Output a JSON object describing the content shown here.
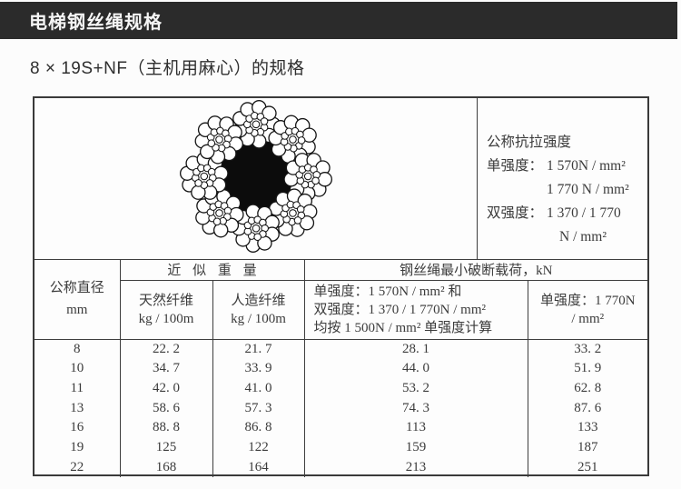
{
  "title_bar": {
    "title": "电梯钢丝绳规格"
  },
  "subtitle": "8 × 19S+NF（主机用麻心）的规格",
  "strength_note": {
    "heading": "公称抗拉强度",
    "rows": [
      {
        "label": "单强度：",
        "value": "1 570N / mm²"
      },
      {
        "label": "",
        "value": "1 770 N / mm²"
      },
      {
        "label": "双强度：",
        "value": "1 370 / 1 770"
      },
      {
        "label": "",
        "value": "N / mm²"
      }
    ]
  },
  "table": {
    "headers": {
      "diameter_line1": "公称直径",
      "diameter_line2": "mm",
      "weight_group": "近似重量",
      "natural_line1": "天然纤维",
      "natural_line2": "kg / 100m",
      "artificial_line1": "人造纤维",
      "artificial_line2": "kg / 100m",
      "breaking_group": "钢丝绳最小破断载荷，kN",
      "breaking_dual_lines": [
        "单强度：1 570N / mm² 和",
        "双强度：1 370 / 1 770N / mm²",
        "均按 1 500N / mm² 单强度计算"
      ],
      "breaking_single_line1": "单强度：1 770N",
      "breaking_single_line2": "/ mm²"
    },
    "rows": [
      {
        "diameter": "8",
        "natural": "22. 2",
        "artificial": "21. 7",
        "breaking_dual": "28. 1",
        "breaking_single": "33. 2"
      },
      {
        "diameter": "10",
        "natural": "34. 7",
        "artificial": "33. 9",
        "breaking_dual": "44. 0",
        "breaking_single": "51. 9"
      },
      {
        "diameter": "11",
        "natural": "42. 0",
        "artificial": "41. 0",
        "breaking_dual": "53. 2",
        "breaking_single": "62. 8"
      },
      {
        "diameter": "13",
        "natural": "58. 6",
        "artificial": "57. 3",
        "breaking_dual": "74. 3",
        "breaking_single": "87. 6"
      },
      {
        "diameter": "16",
        "natural": "88. 8",
        "artificial": "86. 8",
        "breaking_dual": "113",
        "breaking_single": "133"
      },
      {
        "diameter": "19",
        "natural": "125",
        "artificial": "122",
        "breaking_dual": "159",
        "breaking_single": "187"
      },
      {
        "diameter": "22",
        "natural": "168",
        "artificial": "164",
        "breaking_dual": "213",
        "breaking_single": "251"
      }
    ]
  },
  "colors": {
    "bar_bg": "#2b2b2b",
    "border": "#3e3e3e",
    "core_fill": "#0c0c0c"
  }
}
